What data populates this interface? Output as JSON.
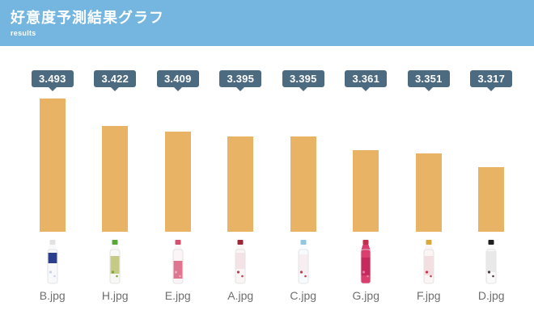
{
  "header": {
    "title": "好意度予測結果グラフ",
    "subtitle": "results"
  },
  "colors": {
    "header_bg": "#74b6e0",
    "badge_bg": "#4c6a80",
    "bar_color": "#e9b366",
    "label_color": "#6e6e6e",
    "background": "#ffffff"
  },
  "chart_data": {
    "type": "bar",
    "title": "好意度予測結果グラフ",
    "subtitle": "results",
    "categories": [
      "B.jpg",
      "H.jpg",
      "E.jpg",
      "A.jpg",
      "C.jpg",
      "G.jpg",
      "F.jpg",
      "D.jpg"
    ],
    "values": [
      3.493,
      3.422,
      3.409,
      3.395,
      3.395,
      3.361,
      3.351,
      3.317
    ],
    "data_labels": [
      "3.493",
      "3.422",
      "3.409",
      "3.395",
      "3.395",
      "3.361",
      "3.351",
      "3.317"
    ],
    "xlabel": "",
    "ylabel": "",
    "ylim": [
      3.15,
      3.51
    ],
    "grid": false,
    "legend_position": "none",
    "sort_order": "descending",
    "bar_color": "#e9b366",
    "label_style": "tooltip-badge-above-bar"
  },
  "columns": [
    {
      "value": "3.493",
      "file": "B.jpg",
      "bottle_icon": "bottle-blue-label",
      "cap": "#e2e2e2",
      "body": "#f7f9fb",
      "band": "#2c3f8c",
      "accent": "#c9d2e8",
      "band_y": 16,
      "band_h": 13
    },
    {
      "value": "3.422",
      "file": "H.jpg",
      "bottle_icon": "bottle-green-cap-floral",
      "cap": "#58a838",
      "body": "#f8f9f4",
      "band": "#c5ca87",
      "accent": "#7aa53f",
      "band_y": 20,
      "band_h": 22
    },
    {
      "value": "3.409",
      "file": "E.jpg",
      "bottle_icon": "bottle-pink-gradient",
      "cap": "#d4506e",
      "body": "#fbf5f7",
      "band": "#e0758f",
      "accent": "#f0a8bb",
      "band_y": 26,
      "band_h": 22
    },
    {
      "value": "3.395",
      "file": "A.jpg",
      "bottle_icon": "bottle-darkred-cap-white",
      "cap": "#9c2738",
      "body": "#faf6f6",
      "band": "#f3e3e6",
      "accent": "#c13a4e",
      "band_y": 16,
      "band_h": 20
    },
    {
      "value": "3.395",
      "file": "C.jpg",
      "bottle_icon": "bottle-lightblue-cap-flowers",
      "cap": "#92c6e2",
      "body": "#f8fbfd",
      "band": "#f6eef0",
      "accent": "#cc3b4e",
      "band_y": 18,
      "band_h": 24
    },
    {
      "value": "3.361",
      "file": "G.jpg",
      "bottle_icon": "bottle-magenta-body",
      "cap": "#c22f4a",
      "body": "#d83f6e",
      "band": "#c52a5e",
      "accent": "#e77ba0",
      "band_y": 22,
      "band_h": 22
    },
    {
      "value": "3.351",
      "file": "F.jpg",
      "bottle_icon": "bottle-gold-cap-flowers",
      "cap": "#d9a93f",
      "body": "#fbf6f4",
      "band": "#f3dfe2",
      "accent": "#c73a52",
      "band_y": 20,
      "band_h": 24
    },
    {
      "value": "3.317",
      "file": "D.jpg",
      "bottle_icon": "bottle-black-cap-text",
      "cap": "#1f1f1f",
      "body": "#fafafa",
      "band": "#e9e9e9",
      "accent": "#4a3a3e",
      "band_y": 14,
      "band_h": 26
    }
  ]
}
